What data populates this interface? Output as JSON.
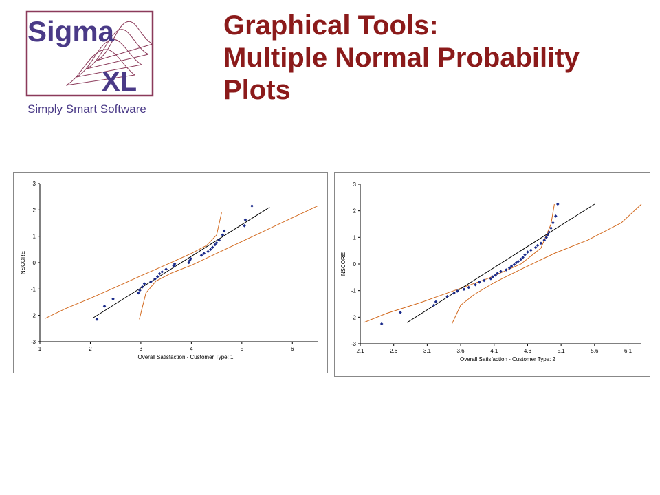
{
  "logo": {
    "wordmark_top": "Sigma",
    "wordmark_bottom": "XL",
    "tagline": "Simply Smart Software"
  },
  "title": {
    "line1": "Graphical Tools:",
    "line2": "Multiple Normal Probability",
    "line3": "Plots"
  },
  "colors": {
    "title": "#8b1a1a",
    "logo": "#4a3a87",
    "logo_frame": "#8b3a5a",
    "points": "#1a2a8a",
    "ci": "#d2691e",
    "fit": "#000000"
  },
  "chart_data": [
    {
      "type": "scatter",
      "xlabel": "Overall Satisfaction - Customer Type: 1",
      "ylabel": "NSCORE",
      "xlim": [
        1,
        6.5
      ],
      "ylim": [
        -3,
        3
      ],
      "xticks": [
        1,
        2,
        3,
        4,
        5,
        6
      ],
      "xtick_labels": [
        "1",
        "2",
        "3",
        "4",
        "5",
        "6"
      ],
      "yticks": [
        -3,
        -2,
        -1,
        0,
        1,
        2,
        3
      ],
      "ytick_labels": [
        "-3",
        "-2",
        "-1",
        "0",
        "1",
        "2",
        "3"
      ],
      "points": [
        [
          2.13,
          -2.15
        ],
        [
          2.28,
          -1.65
        ],
        [
          2.45,
          -1.38
        ],
        [
          2.95,
          -1.15
        ],
        [
          2.98,
          -1.05
        ],
        [
          3.03,
          -0.92
        ],
        [
          3.07,
          -0.8
        ],
        [
          3.2,
          -0.72
        ],
        [
          3.28,
          -0.62
        ],
        [
          3.33,
          -0.53
        ],
        [
          3.37,
          -0.42
        ],
        [
          3.42,
          -0.35
        ],
        [
          3.5,
          -0.25
        ],
        [
          3.65,
          -0.12
        ],
        [
          3.67,
          -0.05
        ],
        [
          3.95,
          0.0
        ],
        [
          3.97,
          0.08
        ],
        [
          3.99,
          0.15
        ],
        [
          4.2,
          0.28
        ],
        [
          4.25,
          0.35
        ],
        [
          4.33,
          0.42
        ],
        [
          4.38,
          0.5
        ],
        [
          4.42,
          0.58
        ],
        [
          4.47,
          0.68
        ],
        [
          4.5,
          0.75
        ],
        [
          4.55,
          0.85
        ],
        [
          4.62,
          1.05
        ],
        [
          4.65,
          1.2
        ],
        [
          5.05,
          1.4
        ],
        [
          5.07,
          1.62
        ],
        [
          5.2,
          2.15
        ]
      ],
      "fit_line": [
        [
          2.05,
          -2.1
        ],
        [
          5.55,
          2.1
        ]
      ],
      "ci_upper": [
        [
          1.1,
          -2.12
        ],
        [
          1.5,
          -1.75
        ],
        [
          2.0,
          -1.35
        ],
        [
          2.5,
          -0.93
        ],
        [
          3.0,
          -0.5
        ],
        [
          3.5,
          -0.08
        ],
        [
          4.0,
          0.35
        ],
        [
          4.3,
          0.65
        ],
        [
          4.5,
          1.05
        ],
        [
          4.6,
          1.9
        ]
      ],
      "ci_lower": [
        [
          2.97,
          -2.15
        ],
        [
          3.1,
          -1.15
        ],
        [
          3.3,
          -0.7
        ],
        [
          3.6,
          -0.4
        ],
        [
          4.0,
          -0.1
        ],
        [
          4.5,
          0.35
        ],
        [
          5.0,
          0.8
        ],
        [
          5.5,
          1.25
        ],
        [
          6.0,
          1.7
        ],
        [
          6.5,
          2.15
        ]
      ]
    },
    {
      "type": "scatter",
      "xlabel": "Overall Satisfaction - Customer Type: 2",
      "ylabel": "NSCORE",
      "xlim": [
        2.1,
        6.3
      ],
      "ylim": [
        -3,
        3
      ],
      "xticks": [
        2.1,
        2.6,
        3.1,
        3.6,
        4.1,
        4.6,
        5.1,
        5.6,
        6.1
      ],
      "xtick_labels": [
        "2.1",
        "2.6",
        "3.1",
        "3.6",
        "4.1",
        "4.6",
        "5.1",
        "5.6",
        "6.1"
      ],
      "yticks": [
        -3,
        -2,
        -1,
        0,
        1,
        2,
        3
      ],
      "ytick_labels": [
        "-3",
        "-2",
        "-1",
        "0",
        "1",
        "2",
        "3"
      ],
      "points": [
        [
          2.42,
          -2.25
        ],
        [
          2.7,
          -1.82
        ],
        [
          3.2,
          -1.55
        ],
        [
          3.23,
          -1.42
        ],
        [
          3.4,
          -1.22
        ],
        [
          3.5,
          -1.1
        ],
        [
          3.55,
          -1.02
        ],
        [
          3.65,
          -0.95
        ],
        [
          3.72,
          -0.88
        ],
        [
          3.82,
          -0.78
        ],
        [
          3.88,
          -0.68
        ],
        [
          3.95,
          -0.62
        ],
        [
          4.05,
          -0.55
        ],
        [
          4.08,
          -0.48
        ],
        [
          4.12,
          -0.42
        ],
        [
          4.15,
          -0.35
        ],
        [
          4.2,
          -0.28
        ],
        [
          4.28,
          -0.22
        ],
        [
          4.33,
          -0.15
        ],
        [
          4.36,
          -0.08
        ],
        [
          4.4,
          -0.02
        ],
        [
          4.43,
          0.05
        ],
        [
          4.46,
          0.1
        ],
        [
          4.5,
          0.18
        ],
        [
          4.53,
          0.25
        ],
        [
          4.56,
          0.35
        ],
        [
          4.6,
          0.45
        ],
        [
          4.65,
          0.52
        ],
        [
          4.72,
          0.62
        ],
        [
          4.75,
          0.7
        ],
        [
          4.8,
          0.78
        ],
        [
          4.85,
          0.9
        ],
        [
          4.88,
          1.0
        ],
        [
          4.9,
          1.1
        ],
        [
          4.92,
          1.2
        ],
        [
          4.95,
          1.35
        ],
        [
          4.98,
          1.55
        ],
        [
          5.02,
          1.8
        ],
        [
          5.05,
          2.25
        ]
      ],
      "fit_line": [
        [
          2.8,
          -2.2
        ],
        [
          5.6,
          2.25
        ]
      ],
      "ci_upper": [
        [
          2.15,
          -2.2
        ],
        [
          2.5,
          -1.85
        ],
        [
          3.0,
          -1.45
        ],
        [
          3.5,
          -1.0
        ],
        [
          4.0,
          -0.55
        ],
        [
          4.5,
          0.0
        ],
        [
          4.8,
          0.6
        ],
        [
          4.95,
          1.5
        ],
        [
          5.0,
          2.25
        ]
      ],
      "ci_lower": [
        [
          3.47,
          -2.25
        ],
        [
          3.6,
          -1.55
        ],
        [
          3.8,
          -1.15
        ],
        [
          4.1,
          -0.7
        ],
        [
          4.5,
          -0.2
        ],
        [
          5.0,
          0.4
        ],
        [
          5.5,
          0.9
        ],
        [
          6.0,
          1.55
        ],
        [
          6.3,
          2.25
        ]
      ]
    }
  ]
}
